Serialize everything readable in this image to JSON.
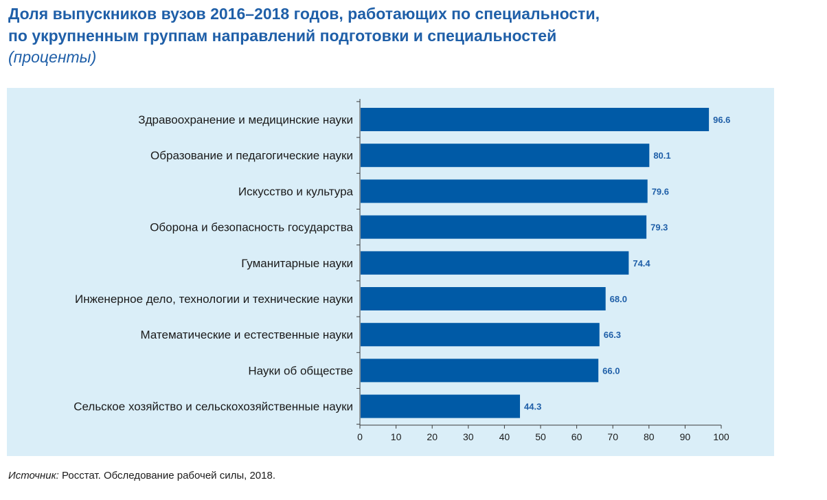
{
  "header": {
    "title_line1": "Доля выпускников вузов 2016–2018 годов, работающих по специальности,",
    "title_line2": "по укрупненным группам направлений подготовки и специальностей",
    "subtitle": "(проценты)"
  },
  "chart_data": {
    "type": "bar",
    "orientation": "horizontal",
    "categories": [
      "Здравоохранение и медицинские науки",
      "Образование и педагогические науки",
      "Искусство и культура",
      "Оборона и безопасность государства",
      "Гуманитарные науки",
      "Инженерное дело, технологии и технические науки",
      "Математические и естественные науки",
      "Науки об обществе",
      "Сельское хозяйство и сельскохозяйственные науки"
    ],
    "values": [
      96.6,
      80.1,
      79.6,
      79.3,
      74.4,
      68.0,
      66.3,
      66.0,
      44.3
    ],
    "value_labels": [
      "96.6",
      "80.1",
      "79.6",
      "79.3",
      "74.4",
      "68.0",
      "66.3",
      "66.0",
      "44.3"
    ],
    "xlim": [
      0,
      100
    ],
    "x_ticks": [
      "0",
      "10",
      "20",
      "30",
      "40",
      "50",
      "60",
      "70",
      "80",
      "90",
      "100"
    ],
    "grid": false,
    "colors": {
      "bar": "#005aa6",
      "background": "#daeef8",
      "value_label": "#1f5fa8",
      "title": "#1f5fa8"
    }
  },
  "footer": {
    "source_prefix": "Источник:",
    "source_text": " Росстат. Обследование рабочей силы, 2018."
  }
}
